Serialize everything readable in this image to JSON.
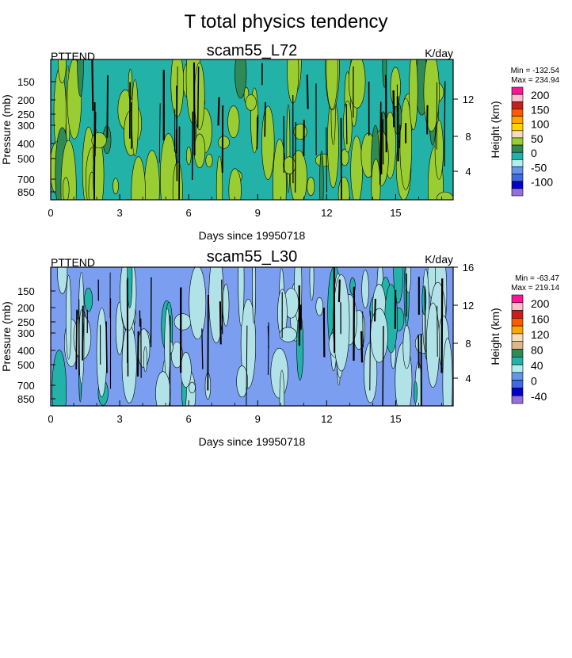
{
  "main_title": "T total physics tendency",
  "chart_data": [
    {
      "type": "heatmap",
      "title": "scam55_L72",
      "left_label": "PTTEND",
      "units": "K/day",
      "xlabel": "Days since 19950718",
      "ylabel": "Pressure (mb)",
      "ylabel_right": "Height (km)",
      "xlim": [
        0,
        17.5
      ],
      "xticks": [
        "0",
        "3",
        "6",
        "9",
        "12",
        "15"
      ],
      "pressure_ticks": [
        "150",
        "200",
        "250",
        "300",
        "400",
        "500",
        "700",
        "850"
      ],
      "height_ticks": [
        "4",
        "8",
        "12"
      ],
      "stats": {
        "min_text": "Min = -132.54",
        "max_text": "Max = 234.94"
      },
      "colorbar_labels": [
        "200",
        "150",
        "100",
        "50",
        "0",
        "-50",
        "-100"
      ],
      "colorbar_colors": [
        "#ff1493",
        "#ffc0cb",
        "#c81e1e",
        "#ff5a00",
        "#ffa500",
        "#ffd700",
        "#f5deb3",
        "#9acd32",
        "#2e8b57",
        "#20b2aa",
        "#afeeee",
        "#6495ed",
        "#4169e1",
        "#0000cd",
        "#9370db"
      ],
      "background_color": "#22b2a8",
      "feature_color": "#9acd32",
      "dark_color": "#2e8b57"
    },
    {
      "type": "heatmap",
      "title": "scam55_L30",
      "left_label": "PTTEND",
      "units": "K/day",
      "xlabel": "Days since 19950718",
      "ylabel": "Pressure (mb)",
      "ylabel_right": "Height (km)",
      "xlim": [
        0,
        17.5
      ],
      "xticks": [
        "0",
        "3",
        "6",
        "9",
        "12",
        "15"
      ],
      "pressure_ticks": [
        "150",
        "200",
        "250",
        "300",
        "400",
        "500",
        "700",
        "850"
      ],
      "height_ticks": [
        "4",
        "8",
        "12",
        "16"
      ],
      "stats": {
        "min_text": "Min = -63.47",
        "max_text": "Max = 219.14"
      },
      "colorbar_labels": [
        "200",
        "160",
        "120",
        "80",
        "40",
        "0",
        "-40"
      ],
      "colorbar_colors": [
        "#ff1493",
        "#ffc0cb",
        "#c81e1e",
        "#ff5a00",
        "#ffa500",
        "#f5deb3",
        "#deb887",
        "#2e8b57",
        "#22b2a8",
        "#afeeee",
        "#6495ed",
        "#4169e1",
        "#0000cd",
        "#9370db"
      ],
      "background_color": "#7b9ef0",
      "feature_color": "#b0e2e8",
      "dark_color": "#22b2a8"
    }
  ]
}
